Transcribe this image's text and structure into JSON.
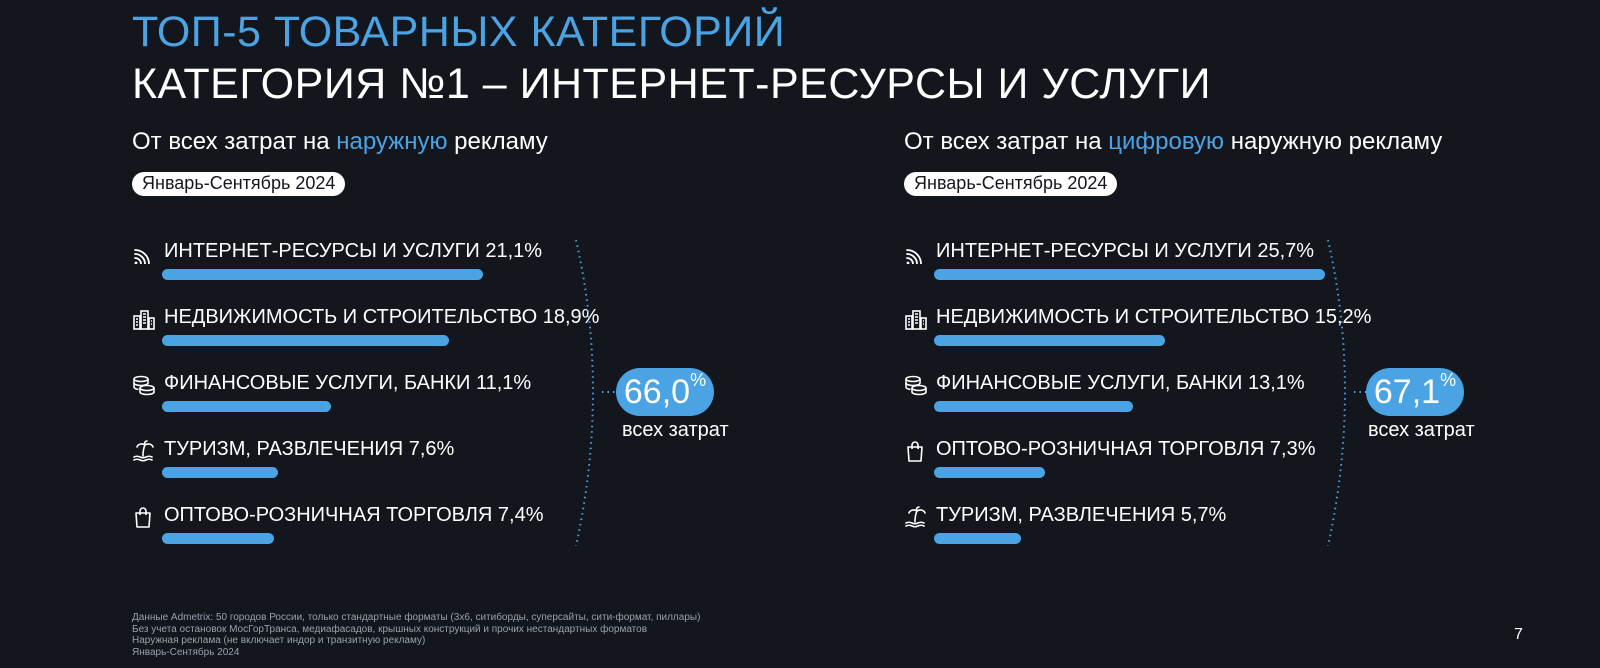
{
  "header": {
    "title": "ТОП-5 ТОВАРНЫХ КАТЕГОРИЙ",
    "subtitle": "КАТЕГОРИЯ №1 – ИНТЕРНЕТ-РЕСУРСЫ И УСЛУГИ"
  },
  "colors": {
    "accent": "#4aa3e3",
    "background": "#14161e",
    "text": "#ffffff"
  },
  "chart_data": [
    {
      "type": "bar",
      "title_prefix": "От всех затрат на ",
      "title_highlight": "наружную",
      "title_suffix": " рекламу",
      "period": "Январь-Сентябрь 2024",
      "categories": [
        "ИНТЕРНЕТ-РЕСУРСЫ И УСЛУГИ 21,1%",
        "НЕДВИЖИМОСТЬ И СТРОИТЕЛЬСТВО 18,9%",
        "ФИНАНСОВЫЕ УСЛУГИ, БАНКИ 11,1%",
        "ТУРИЗМ, РАЗВЛЕЧЕНИЯ 7,6%",
        "ОПТОВО-РОЗНИЧНАЯ ТОРГОВЛЯ 7,4%"
      ],
      "values": [
        21.1,
        18.9,
        11.1,
        7.6,
        7.4
      ],
      "icons": [
        "wifi-icon",
        "buildings-icon",
        "coins-icon",
        "palm-beach-icon",
        "shopping-bag-icon"
      ],
      "total_value": "66,0",
      "total_unit": "%",
      "total_caption": "всех затрат"
    },
    {
      "type": "bar",
      "title_prefix": "От всех затрат на ",
      "title_highlight": "цифровую",
      "title_suffix": " наружную рекламу",
      "period": "Январь-Сентябрь 2024",
      "categories": [
        "ИНТЕРНЕТ-РЕСУРСЫ И УСЛУГИ 25,7%",
        "НЕДВИЖИМОСТЬ И СТРОИТЕЛЬСТВО 15,2%",
        "ФИНАНСОВЫЕ УСЛУГИ, БАНКИ 13,1%",
        "ОПТОВО-РОЗНИЧНАЯ ТОРГОВЛЯ 7,3%",
        "ТУРИЗМ, РАЗВЛЕЧЕНИЯ 5,7%"
      ],
      "values": [
        25.7,
        15.2,
        13.1,
        7.3,
        5.7
      ],
      "icons": [
        "wifi-icon",
        "buildings-icon",
        "coins-icon",
        "shopping-bag-icon",
        "palm-beach-icon"
      ],
      "total_value": "67,1",
      "total_unit": "%",
      "total_caption": "всех затрат"
    }
  ],
  "footnotes": [
    "Данные Admetrix: 50 городов России, только стандартные форматы (3х6, ситиборды, суперсайты, сити-формат, пиллары)",
    "Без учета остановок МосГорТранса, медиафасадов, крышных конструкций и прочих нестандартных форматов",
    "Наружная реклама (не включает индор и транзитную рекламу)",
    "Январь-Сентябрь 2024"
  ],
  "page_number": "7"
}
